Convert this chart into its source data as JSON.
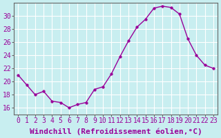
{
  "hours": [
    0,
    1,
    2,
    3,
    4,
    5,
    6,
    7,
    8,
    9,
    10,
    11,
    12,
    13,
    14,
    15,
    16,
    17,
    18,
    19,
    20,
    21,
    22,
    23
  ],
  "values": [
    21.0,
    19.5,
    18.0,
    18.5,
    17.0,
    16.8,
    16.0,
    16.5,
    16.8,
    18.8,
    19.2,
    21.2,
    23.8,
    26.2,
    28.3,
    29.5,
    31.2,
    31.5,
    31.3,
    30.3,
    26.5,
    24.0,
    22.5,
    22.0
  ],
  "line_color": "#990099",
  "marker_color": "#990099",
  "background_color": "#c8eef0",
  "grid_color": "#ffffff",
  "xlabel": "Windchill (Refroidissement éolien,°C)",
  "ylim": [
    15,
    32
  ],
  "xlim": [
    -0.5,
    23.5
  ],
  "yticks": [
    16,
    18,
    20,
    22,
    24,
    26,
    28,
    30
  ],
  "xticks": [
    0,
    1,
    2,
    3,
    4,
    5,
    6,
    7,
    8,
    9,
    10,
    11,
    12,
    13,
    14,
    15,
    16,
    17,
    18,
    19,
    20,
    21,
    22,
    23
  ],
  "tick_label_fontsize": 7,
  "xlabel_fontsize": 8,
  "spine_color": "#666666"
}
